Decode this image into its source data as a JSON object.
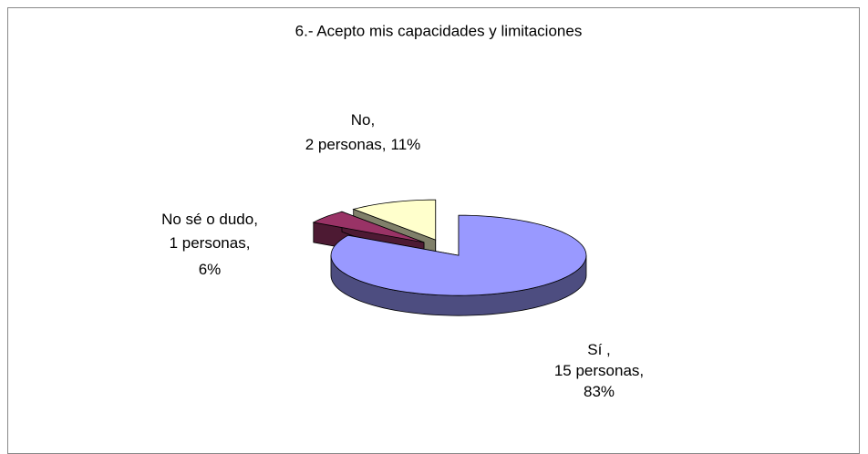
{
  "chart_data": {
    "type": "pie3d",
    "title": "6.- Acepto mis capacidades y limitaciones",
    "categories": [
      "Sí ,",
      "No sé o dudo,",
      "No,"
    ],
    "values": [
      15,
      1,
      2
    ],
    "value_labels": [
      "15 personas,",
      "1 personas,",
      "2 personas,"
    ],
    "percentages": [
      83,
      6,
      11
    ],
    "percentage_labels": [
      "83%",
      "6%",
      "11%"
    ],
    "colors": [
      "#9999ff",
      "#993366",
      "#ffffcc"
    ],
    "side_colors": [
      "#4d4d80",
      "#4d1a33",
      "#80806a"
    ]
  }
}
